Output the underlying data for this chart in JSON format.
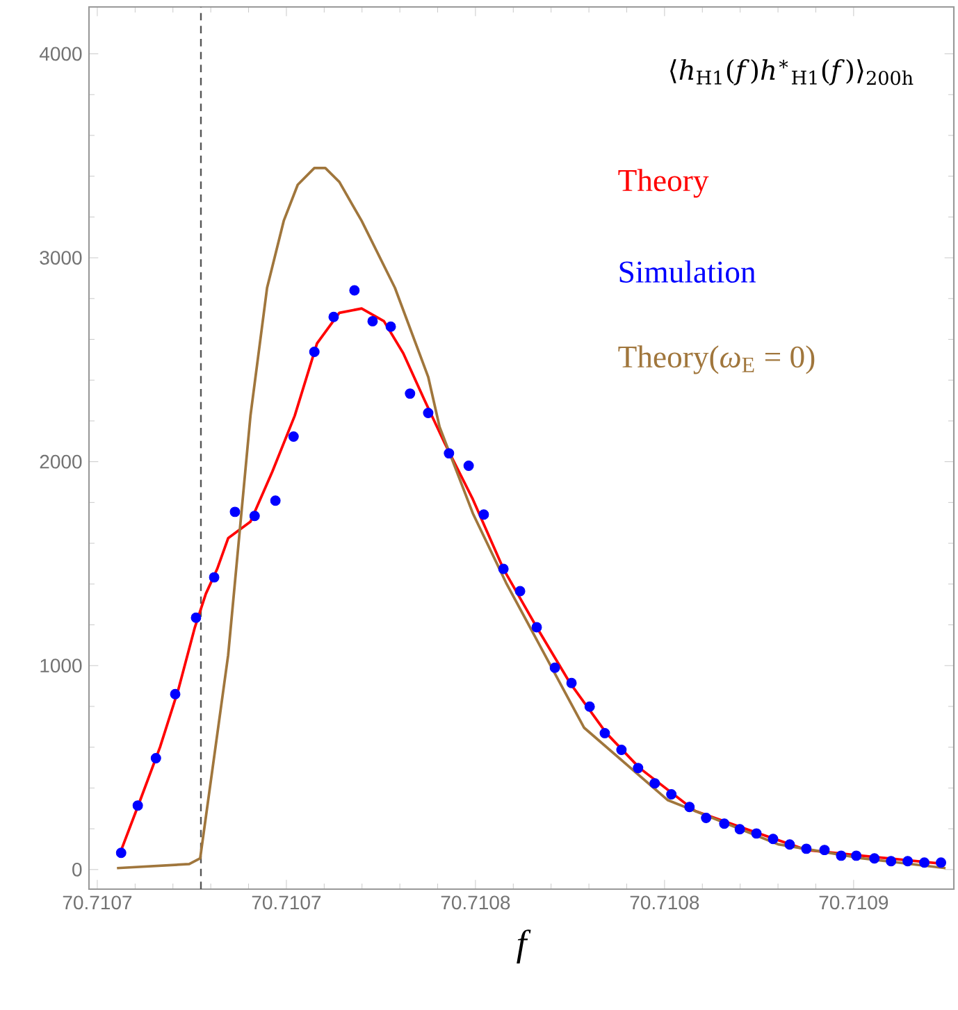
{
  "chart_data": {
    "type": "line",
    "title": "⟨*h*$_{H1}$(*f*)*h*$^{∗}$$_{H1}$(*f*)⟩$_{200h}$",
    "xlabel": "f",
    "xlim": [
      70.7106578,
      70.7108865
    ],
    "ylim": [
      -96,
      4230
    ],
    "xticks": [
      {
        "value": 70.71066,
        "label": "70.7107"
      },
      {
        "value": 70.71071,
        "label": "70.7107"
      },
      {
        "value": 70.71076,
        "label": "70.7108"
      },
      {
        "value": 70.71081,
        "label": "70.7108"
      },
      {
        "value": 70.71086,
        "label": "70.7109"
      }
    ],
    "yticks": [
      0,
      1000,
      2000,
      3000,
      4000
    ],
    "legend": "top right",
    "grid": false,
    "ref_lines": [
      {
        "axis": "x",
        "value": 70.7106874,
        "color": "#555555",
        "line_style": "dashed"
      }
    ],
    "series": [
      {
        "name": "Theory",
        "color": "#ff0000",
        "line_style": "solid",
        "x": [
          70.7106659,
          70.7106711,
          70.7106766,
          70.7106814,
          70.7106858,
          70.7106887,
          70.7106917,
          70.7106946,
          70.7107005,
          70.7107063,
          70.7107122,
          70.7107181,
          70.710724,
          70.7107299,
          70.7107358,
          70.7107409,
          70.7107464,
          70.7107519,
          70.7107593,
          70.7107674,
          70.7107762,
          70.710785,
          70.7107946,
          70.7108034,
          70.7108181,
          70.7108328,
          70.7108475,
          70.7108622,
          70.7108843
        ],
        "values": [
          75,
          328,
          601,
          881,
          1188,
          1352,
          1474,
          1625,
          1706,
          1952,
          2225,
          2580,
          2730,
          2751,
          2689,
          2532,
          2307,
          2089,
          1816,
          1474,
          1188,
          915,
          669,
          498,
          287,
          191,
          96,
          68,
          27
        ]
      },
      {
        "name": "Simulation",
        "type": "scatter",
        "color": "#0000ff",
        "marker": "circle",
        "x": [
          70.7106663,
          70.7106707,
          70.7106755,
          70.7106806,
          70.7106861,
          70.7106909,
          70.7106964,
          70.7107016,
          70.7107071,
          70.7107119,
          70.7107174,
          70.7107225,
          70.710728,
          70.7107328,
          70.7107376,
          70.7107427,
          70.7107475,
          70.710753,
          70.7107582,
          70.7107622,
          70.7107674,
          70.7107718,
          70.7107762,
          70.710781,
          70.7107854,
          70.7107902,
          70.7107942,
          70.7107986,
          70.710803,
          70.7108074,
          70.7108118,
          70.7108166,
          70.710821,
          70.7108258,
          70.7108299,
          70.7108343,
          70.7108387,
          70.7108431,
          70.7108475,
          70.7108523,
          70.7108567,
          70.7108607,
          70.7108655,
          70.7108699,
          70.7108743,
          70.7108787,
          70.7108831
        ],
        "values": [
          82,
          314,
          546,
          860,
          1235,
          1433,
          1754,
          1734,
          1809,
          2123,
          2539,
          2710,
          2840,
          2689,
          2662,
          2334,
          2239,
          2041,
          1980,
          1741,
          1474,
          1365,
          1188,
          990,
          915,
          799,
          669,
          587,
          498,
          423,
          369,
          307,
          253,
          225,
          198,
          177,
          150,
          123,
          102,
          96,
          68,
          68,
          55,
          41,
          41,
          34,
          34
        ]
      },
      {
        "name": "Theory(*ω*$_{E}$ = 0)",
        "color": "#a0763c",
        "line_style": "solid",
        "x": [
          70.7106652,
          70.7106843,
          70.7106872,
          70.7106946,
          70.7107005,
          70.7107049,
          70.7107093,
          70.710713,
          70.7107174,
          70.7107203,
          70.710724,
          70.7107299,
          70.7107387,
          70.7107475,
          70.7107505,
          70.7107593,
          70.7107681,
          70.7107887,
          70.7108108,
          70.7108402,
          70.7108622,
          70.7108843
        ],
        "values": [
          7,
          27,
          55,
          1051,
          2225,
          2853,
          3181,
          3358,
          3440,
          3440,
          3372,
          3181,
          2853,
          2416,
          2171,
          1747,
          1406,
          696,
          341,
          123,
          55,
          7
        ]
      }
    ]
  }
}
